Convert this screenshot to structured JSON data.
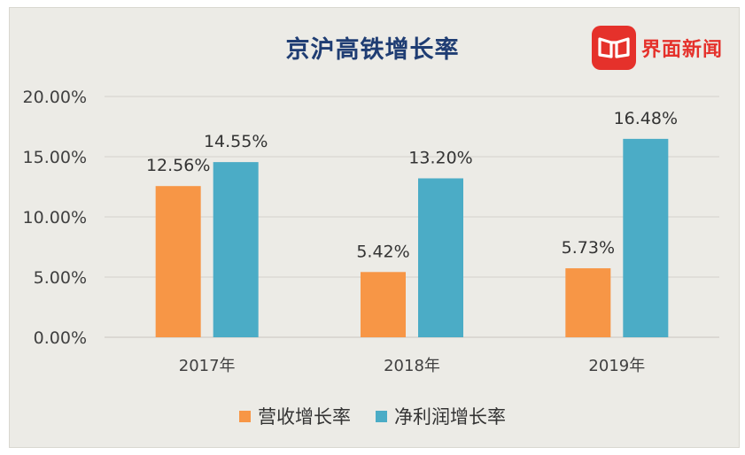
{
  "brand": {
    "name": "界面新闻",
    "color": "#e5312b",
    "icon": "jiemian-logo-icon"
  },
  "chart_data": {
    "type": "bar",
    "title": "京沪高铁增长率",
    "categories": [
      "2017年",
      "2018年",
      "2019年"
    ],
    "series": [
      {
        "name": "营收增长率",
        "values": [
          12.56,
          5.42,
          5.73
        ],
        "labels": [
          "12.56%",
          "5.42%",
          "5.73%"
        ],
        "color": "#f79646"
      },
      {
        "name": "净利润增长率",
        "values": [
          14.55,
          13.2,
          16.48
        ],
        "labels": [
          "14.55%",
          "13.20%",
          "16.48%"
        ],
        "color": "#4bacc6"
      }
    ],
    "y_ticks": [
      "0.00%",
      "5.00%",
      "10.00%",
      "15.00%",
      "20.00%"
    ],
    "ylim": [
      0,
      20
    ],
    "grid": true,
    "legend_position": "bottom"
  }
}
